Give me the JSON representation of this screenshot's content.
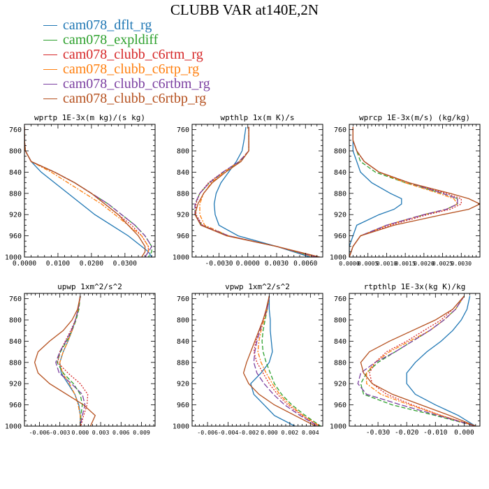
{
  "title": "CLUBB VAR at140E,2N",
  "legend": [
    {
      "label": "cam078_dflt_rg",
      "color": "#1f77b4"
    },
    {
      "label": "cam078_expldiff",
      "color": "#2ca02c"
    },
    {
      "label": "cam078_clubb_c6rtm_rg",
      "color": "#d62728"
    },
    {
      "label": "cam078_clubb_c6rtp_rg",
      "color": "#ff7f0e"
    },
    {
      "label": "cam078_clubb_c6rtbm_rg",
      "color": "#7b3fa0"
    },
    {
      "label": "cam078_clubb_c6rtbp_rg",
      "color": "#b5501e"
    }
  ],
  "chart_data": [
    {
      "type": "line",
      "title": "wprtp  1E-3x(m kg)/(s kg)",
      "xlim": [
        0,
        0.039
      ],
      "ylim": [
        1000,
        750
      ],
      "xticks": [
        0,
        0.01,
        0.02,
        0.03
      ],
      "xtick_labels": [
        "0.0000",
        "0.0100",
        "0.0200",
        "0.0300"
      ],
      "yticks": [
        760,
        800,
        840,
        880,
        920,
        960,
        1000
      ],
      "y": [
        755,
        780,
        800,
        820,
        840,
        860,
        880,
        900,
        920,
        940,
        960,
        980,
        990,
        1000
      ],
      "series": [
        {
          "name": "cam078_dflt_rg",
          "x": [
            0,
            0,
            0.0003,
            0.002,
            0.005,
            0.009,
            0.013,
            0.017,
            0.021,
            0.026,
            0.031,
            0.035,
            0.037,
            0.038
          ]
        },
        {
          "name": "cam078_expldiff",
          "x": [
            0,
            0,
            0.0003,
            0.002,
            0.009,
            0.015,
            0.02,
            0.025,
            0.029,
            0.033,
            0.036,
            0.038,
            0.038,
            0.037
          ]
        },
        {
          "name": "cam078_clubb_c6rtm_rg",
          "x": [
            0,
            0,
            0.0003,
            0.002,
            0.009,
            0.015,
            0.02,
            0.024,
            0.028,
            0.032,
            0.035,
            0.037,
            0.037,
            0.036
          ]
        },
        {
          "name": "cam078_clubb_c6rtp_rg",
          "x": [
            0,
            0,
            0.0003,
            0.002,
            0.008,
            0.013,
            0.018,
            0.023,
            0.027,
            0.031,
            0.035,
            0.037,
            0.037,
            0.036
          ]
        },
        {
          "name": "cam078_clubb_c6rtbm_rg",
          "x": [
            0,
            0,
            0.0003,
            0.002,
            0.009,
            0.015,
            0.02,
            0.025,
            0.029,
            0.033,
            0.036,
            0.038,
            0.037,
            0.036
          ]
        },
        {
          "name": "cam078_clubb_c6rtbp_rg",
          "x": [
            0,
            0,
            0.0003,
            0.002,
            0.009,
            0.015,
            0.02,
            0.024,
            0.028,
            0.031,
            0.034,
            0.036,
            0.036,
            0.035
          ]
        }
      ]
    },
    {
      "type": "line",
      "title": "wpthlp  1x(m K)/s",
      "xlim": [
        -0.0058,
        0.0078
      ],
      "ylim": [
        1000,
        750
      ],
      "xticks": [
        -0.003,
        0,
        0.003,
        0.006
      ],
      "xtick_labels": [
        "-0.0030",
        "0.0000",
        "0.0030",
        "0.0060"
      ],
      "yticks": [
        760,
        800,
        840,
        880,
        920,
        960,
        1000
      ],
      "y": [
        755,
        780,
        800,
        820,
        840,
        860,
        880,
        900,
        920,
        940,
        960,
        980,
        1000
      ],
      "series": [
        {
          "name": "cam078_dflt_rg",
          "x": [
            -0.0002,
            -0.0004,
            -0.0006,
            -0.0012,
            -0.002,
            -0.0028,
            -0.0033,
            -0.0035,
            -0.0034,
            -0.003,
            -0.001,
            0.003,
            0.0065
          ]
        },
        {
          "name": "cam078_expldiff",
          "x": [
            0.0001,
            0.0001,
            0.0001,
            -0.0008,
            -0.0025,
            -0.004,
            -0.005,
            -0.0055,
            -0.0055,
            -0.0048,
            -0.002,
            0.003,
            0.007
          ]
        },
        {
          "name": "cam078_clubb_c6rtm_rg",
          "x": [
            0.0001,
            0.0001,
            0.0001,
            -0.0009,
            -0.0026,
            -0.0041,
            -0.005,
            -0.0054,
            -0.0054,
            -0.0047,
            -0.002,
            0.003,
            0.007
          ]
        },
        {
          "name": "cam078_clubb_c6rtp_rg",
          "x": [
            0.0001,
            0.0001,
            0.0001,
            -0.0009,
            -0.0025,
            -0.0038,
            -0.0046,
            -0.005,
            -0.005,
            -0.0045,
            -0.002,
            0.003,
            0.007
          ]
        },
        {
          "name": "cam078_clubb_c6rtbm_rg",
          "x": [
            0.0001,
            0.0001,
            0.0001,
            -0.0009,
            -0.0026,
            -0.004,
            -0.005,
            -0.0055,
            -0.0055,
            -0.0048,
            -0.002,
            0.003,
            0.0072
          ]
        },
        {
          "name": "cam078_clubb_c6rtbp_rg",
          "x": [
            0.0001,
            0.0001,
            0.0001,
            -0.0007,
            -0.0023,
            -0.0037,
            -0.0046,
            -0.0052,
            -0.0055,
            -0.0049,
            -0.0022,
            0.003,
            0.0075
          ]
        }
      ]
    },
    {
      "type": "line",
      "title": "wprcp  1E-3x(m/s) (kg/kg)",
      "xlim": [
        0,
        0.0035
      ],
      "ylim": [
        1000,
        750
      ],
      "xticks": [
        0,
        0.0005,
        0.001,
        0.0015,
        0.002,
        0.0025,
        0.003
      ],
      "xtick_labels": [
        "0.0000",
        "0.0005",
        "0.0010",
        "0.0015",
        "0.0020",
        "0.0025",
        "0.0030"
      ],
      "yticks": [
        760,
        800,
        840,
        880,
        920,
        960,
        1000
      ],
      "y": [
        755,
        780,
        800,
        820,
        840,
        860,
        880,
        890,
        900,
        910,
        920,
        940,
        960,
        980,
        1000
      ],
      "series": [
        {
          "name": "cam078_dflt_rg",
          "x": [
            0.0001,
            0.0001,
            0.0001,
            0.0002,
            0.0003,
            0.0006,
            0.0011,
            0.0014,
            0.0014,
            0.0012,
            0.0008,
            0.0002,
            0.0001,
            0,
            0
          ]
        },
        {
          "name": "cam078_expldiff",
          "x": [
            0.0001,
            0.0001,
            0.0002,
            0.0003,
            0.0007,
            0.0015,
            0.0025,
            0.0029,
            0.0029,
            0.0026,
            0.002,
            0.001,
            0.0003,
            0.0001,
            0
          ]
        },
        {
          "name": "cam078_clubb_c6rtm_rg",
          "x": [
            0.0001,
            0.0001,
            0.0002,
            0.0004,
            0.0008,
            0.0016,
            0.0026,
            0.003,
            0.003,
            0.0027,
            0.0021,
            0.0011,
            0.0003,
            0.0001,
            0
          ]
        },
        {
          "name": "cam078_clubb_c6rtp_rg",
          "x": [
            0.0001,
            0.0001,
            0.0002,
            0.0004,
            0.0008,
            0.0015,
            0.0024,
            0.0028,
            0.0029,
            0.0026,
            0.002,
            0.001,
            0.0003,
            0.0001,
            0
          ]
        },
        {
          "name": "cam078_clubb_c6rtbm_rg",
          "x": [
            0.0001,
            0.0001,
            0.0002,
            0.0004,
            0.0008,
            0.0016,
            0.0025,
            0.0029,
            0.0029,
            0.0026,
            0.002,
            0.001,
            0.0003,
            0.0001,
            0
          ]
        },
        {
          "name": "cam078_clubb_c6rtbp_rg",
          "x": [
            0.0001,
            0.0001,
            0.0002,
            0.0004,
            0.0008,
            0.0016,
            0.0027,
            0.0032,
            0.0035,
            0.0032,
            0.0025,
            0.0012,
            0.0003,
            0.0001,
            0
          ]
        }
      ]
    },
    {
      "type": "line",
      "title": "upwp  1xm^2/s^2",
      "xlim": [
        -0.0082,
        0.011
      ],
      "ylim": [
        1000,
        750
      ],
      "xticks": [
        -0.006,
        -0.003,
        0,
        0.003,
        0.006,
        0.009
      ],
      "xtick_labels": [
        "-0.006",
        "-0.003",
        "0.000",
        "0.003",
        "0.006",
        "0.009"
      ],
      "yticks": [
        760,
        800,
        840,
        880,
        920,
        960,
        1000
      ],
      "y": [
        755,
        780,
        800,
        820,
        840,
        860,
        880,
        900,
        920,
        940,
        960,
        980,
        1000
      ],
      "series": [
        {
          "name": "cam078_dflt_rg",
          "x": [
            0,
            -0.0003,
            -0.0007,
            -0.0012,
            -0.0018,
            -0.0025,
            -0.003,
            -0.0028,
            -0.0018,
            -0.0008,
            -0.0002,
            0,
            0
          ]
        },
        {
          "name": "cam078_expldiff",
          "x": [
            0,
            -0.0002,
            -0.0006,
            -0.0012,
            -0.002,
            -0.0029,
            -0.0034,
            -0.0025,
            -0.001,
            0,
            0.0003,
            0.0001,
            0
          ]
        },
        {
          "name": "cam078_clubb_c6rtm_rg",
          "x": [
            0,
            -0.0003,
            -0.0007,
            -0.0014,
            -0.0022,
            -0.003,
            -0.0033,
            -0.0018,
            0,
            0.0011,
            0.001,
            0.0005,
            0.0001
          ]
        },
        {
          "name": "cam078_clubb_c6rtp_rg",
          "x": [
            0,
            -0.0003,
            -0.0007,
            -0.0012,
            -0.0018,
            -0.0025,
            -0.003,
            -0.0026,
            -0.0016,
            -0.0008,
            -0.0003,
            0,
            0
          ]
        },
        {
          "name": "cam078_clubb_c6rtbm_rg",
          "x": [
            0,
            -0.0003,
            -0.0007,
            -0.0013,
            -0.0021,
            -0.003,
            -0.0036,
            -0.0031,
            -0.0013,
            0.0003,
            0.0007,
            0.0003,
            0
          ]
        },
        {
          "name": "cam078_clubb_c6rtbp_rg",
          "x": [
            0,
            -0.0004,
            -0.0012,
            -0.0025,
            -0.0045,
            -0.0062,
            -0.0067,
            -0.0062,
            -0.0045,
            -0.002,
            0.0005,
            0.0022,
            0.0015
          ]
        }
      ]
    },
    {
      "type": "line",
      "title": "vpwp  1xm^2/s^2",
      "xlim": [
        -0.0075,
        0.0052
      ],
      "ylim": [
        1000,
        750
      ],
      "xticks": [
        -0.006,
        -0.004,
        -0.002,
        0,
        0.002,
        0.004
      ],
      "xtick_labels": [
        "-0.006",
        "-0.004",
        "-0.002",
        "0.000",
        "0.002",
        "0.004"
      ],
      "yticks": [
        760,
        800,
        840,
        880,
        920,
        960,
        1000
      ],
      "y": [
        755,
        780,
        800,
        820,
        840,
        860,
        880,
        900,
        920,
        940,
        960,
        980,
        1000
      ],
      "series": [
        {
          "name": "cam078_dflt_rg",
          "x": [
            0,
            0,
            0.0001,
            0.0001,
            0.0002,
            0.0003,
            0,
            -0.0008,
            -0.0018,
            -0.0015,
            -0.0005,
            0.0005,
            0.0025
          ]
        },
        {
          "name": "cam078_expldiff",
          "x": [
            0,
            -0.0002,
            -0.0004,
            -0.0006,
            -0.0007,
            -0.0006,
            -0.0003,
            0.0001,
            0.0005,
            0.0012,
            0.0022,
            0.0035,
            0.005
          ]
        },
        {
          "name": "cam078_clubb_c6rtm_rg",
          "x": [
            0,
            -0.0002,
            -0.0006,
            -0.001,
            -0.0013,
            -0.0015,
            -0.0012,
            -0.0006,
            0,
            0.0008,
            0.0018,
            0.0032,
            0.0048
          ]
        },
        {
          "name": "cam078_clubb_c6rtp_rg",
          "x": [
            0,
            -0.0002,
            -0.0005,
            -0.0008,
            -0.001,
            -0.0011,
            -0.0008,
            -0.0003,
            0.0003,
            0.001,
            0.002,
            0.0033,
            0.0049
          ]
        },
        {
          "name": "cam078_clubb_c6rtbm_rg",
          "x": [
            0,
            -0.0002,
            -0.0006,
            -0.0009,
            -0.0012,
            -0.0014,
            -0.0015,
            -0.0012,
            -0.0005,
            0.0004,
            0.0015,
            0.003,
            0.0047
          ]
        },
        {
          "name": "cam078_clubb_c6rtbp_rg",
          "x": [
            0,
            -0.0003,
            -0.0006,
            -0.001,
            -0.0014,
            -0.0018,
            -0.0022,
            -0.0025,
            -0.002,
            -0.001,
            0.0005,
            0.0025,
            0.0045
          ]
        }
      ]
    },
    {
      "type": "line",
      "title": "rtpthlp  1E-3x(kg K)/kg",
      "xlim": [
        -0.04,
        0.0055
      ],
      "ylim": [
        1000,
        750
      ],
      "xticks": [
        -0.03,
        -0.02,
        -0.01,
        0
      ],
      "xtick_labels": [
        "-0.030",
        "-0.020",
        "-0.010",
        "0.000"
      ],
      "yticks": [
        760,
        800,
        840,
        880,
        920,
        960,
        1000
      ],
      "y": [
        755,
        780,
        800,
        820,
        840,
        860,
        880,
        900,
        920,
        940,
        960,
        980,
        1000
      ],
      "series": [
        {
          "name": "cam078_dflt_rg",
          "x": [
            0.002,
            0.001,
            -0.001,
            -0.004,
            -0.008,
            -0.013,
            -0.017,
            -0.02,
            -0.02,
            -0.017,
            -0.01,
            -0.002,
            0.004
          ]
        },
        {
          "name": "cam078_expldiff",
          "x": [
            0,
            -0.003,
            -0.007,
            -0.012,
            -0.018,
            -0.024,
            -0.03,
            -0.034,
            -0.036,
            -0.035,
            -0.025,
            -0.01,
            0.004
          ]
        },
        {
          "name": "cam078_clubb_c6rtm_rg",
          "x": [
            0,
            -0.004,
            -0.008,
            -0.014,
            -0.02,
            -0.027,
            -0.031,
            -0.033,
            -0.032,
            -0.027,
            -0.018,
            -0.008,
            0.004
          ]
        },
        {
          "name": "cam078_clubb_c6rtp_rg",
          "x": [
            0,
            -0.003,
            -0.007,
            -0.012,
            -0.019,
            -0.026,
            -0.031,
            -0.034,
            -0.034,
            -0.029,
            -0.019,
            -0.008,
            0.004
          ]
        },
        {
          "name": "cam078_clubb_c6rtbm_rg",
          "x": [
            0,
            -0.003,
            -0.007,
            -0.012,
            -0.018,
            -0.024,
            -0.031,
            -0.036,
            -0.037,
            -0.034,
            -0.022,
            -0.009,
            0.004
          ]
        },
        {
          "name": "cam078_clubb_c6rtbp_rg",
          "x": [
            0,
            -0.004,
            -0.01,
            -0.018,
            -0.026,
            -0.033,
            -0.036,
            -0.035,
            -0.032,
            -0.025,
            -0.015,
            -0.005,
            0.004
          ]
        }
      ]
    }
  ]
}
